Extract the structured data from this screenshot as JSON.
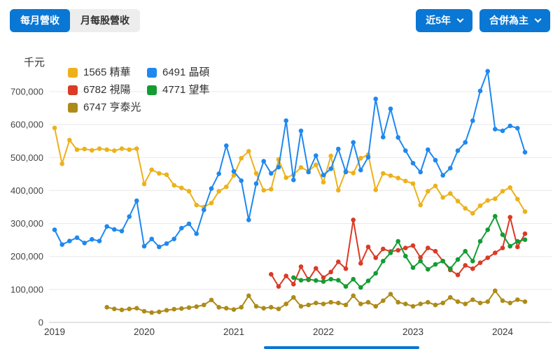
{
  "colors": {
    "accent": "#0a77d4"
  },
  "toolbar": {
    "view_tabs": [
      {
        "label": "每月營收",
        "active": true
      },
      {
        "label": "月每股營收",
        "active": false
      }
    ],
    "range_button": "近5年",
    "mode_button": "合併為主"
  },
  "chart_data": {
    "type": "line",
    "unit_label": "千元",
    "x_start": "2019-01",
    "x_interval": "month",
    "x_tick_labels": [
      "2019",
      "2020",
      "2021",
      "2022",
      "2023",
      "2024"
    ],
    "y_tick_labels": [
      "0",
      "100,000",
      "200,000",
      "300,000",
      "400,000",
      "500,000",
      "600,000",
      "700,000"
    ],
    "ylim": [
      0,
      780000
    ],
    "grid": "horizontal",
    "legend_position": "top-left-inside",
    "series": [
      {
        "id": "1565",
        "label": "1565 精華",
        "color": "#EDB11A",
        "values": [
          590000,
          481000,
          553000,
          524000,
          526000,
          522000,
          527000,
          524000,
          521000,
          527000,
          524000,
          527000,
          420000,
          463000,
          452000,
          448000,
          416000,
          408000,
          398000,
          356000,
          350000,
          362000,
          398000,
          411000,
          446000,
          498000,
          519000,
          452000,
          401000,
          404000,
          494000,
          439000,
          448000,
          470000,
          459000,
          478000,
          425000,
          505000,
          401000,
          459000,
          453000,
          498000,
          509000,
          402000,
          452000,
          445000,
          438000,
          429000,
          421000,
          356000,
          398000,
          414000,
          379000,
          391000,
          368000,
          346000,
          331000,
          354000,
          370000,
          375000,
          398000,
          409000,
          374000,
          336000
        ]
      },
      {
        "id": "6491",
        "label": "6491 晶碩",
        "color": "#1E88F0",
        "values": [
          281000,
          236000,
          247000,
          257000,
          241000,
          252000,
          247000,
          291000,
          282000,
          277000,
          321000,
          369000,
          231000,
          253000,
          229000,
          239000,
          253000,
          286000,
          299000,
          269000,
          341000,
          406000,
          451000,
          536000,
          458000,
          430000,
          311000,
          421000,
          489000,
          452000,
          471000,
          612000,
          432000,
          581000,
          456000,
          506000,
          447000,
          466000,
          526000,
          456000,
          546000,
          462000,
          501000,
          678000,
          562000,
          648000,
          561000,
          521000,
          483000,
          456000,
          524000,
          492000,
          446000,
          468000,
          521000,
          546000,
          612000,
          702000,
          762000,
          586000,
          581000,
          596000,
          589000,
          516000
        ]
      },
      {
        "id": "6782",
        "label": "6782 視陽",
        "color": "#D93B26",
        "values": [
          null,
          null,
          null,
          null,
          null,
          null,
          null,
          null,
          null,
          null,
          null,
          null,
          null,
          null,
          null,
          null,
          null,
          null,
          null,
          null,
          null,
          null,
          null,
          null,
          null,
          null,
          null,
          null,
          null,
          146000,
          109000,
          141000,
          116000,
          169000,
          129000,
          164000,
          136000,
          153000,
          184000,
          163000,
          311000,
          179000,
          229000,
          196000,
          223000,
          215000,
          219000,
          226000,
          233000,
          197000,
          226000,
          216000,
          186000,
          159000,
          144000,
          173000,
          163000,
          181000,
          196000,
          211000,
          226000,
          319000,
          229000,
          269000
        ]
      },
      {
        "id": "4771",
        "label": "4771 望隼",
        "color": "#149C32",
        "values": [
          null,
          null,
          null,
          null,
          null,
          null,
          null,
          null,
          null,
          null,
          null,
          null,
          null,
          null,
          null,
          null,
          null,
          null,
          null,
          null,
          null,
          null,
          null,
          null,
          null,
          null,
          null,
          null,
          null,
          null,
          null,
          null,
          136000,
          128000,
          131000,
          127000,
          124000,
          131000,
          128000,
          109000,
          131000,
          106000,
          126000,
          149000,
          186000,
          211000,
          246000,
          201000,
          166000,
          186000,
          161000,
          176000,
          186000,
          163000,
          191000,
          216000,
          186000,
          246000,
          281000,
          322000,
          266000,
          231000,
          246000,
          251000
        ]
      },
      {
        "id": "6747",
        "label": "6747 亨泰光",
        "color": "#AD8B19",
        "values": [
          null,
          null,
          null,
          null,
          null,
          null,
          null,
          46000,
          41000,
          38000,
          41000,
          43000,
          34000,
          30000,
          32000,
          37000,
          40000,
          42000,
          45000,
          48000,
          53000,
          68000,
          46000,
          43000,
          39000,
          46000,
          81000,
          49000,
          43000,
          46000,
          41000,
          56000,
          76000,
          49000,
          53000,
          59000,
          56000,
          61000,
          59000,
          53000,
          81000,
          56000,
          61000,
          49000,
          66000,
          86000,
          61000,
          56000,
          49000,
          56000,
          61000,
          53000,
          59000,
          76000,
          63000,
          56000,
          69000,
          59000,
          63000,
          96000,
          66000,
          59000,
          69000,
          63000
        ]
      }
    ]
  }
}
